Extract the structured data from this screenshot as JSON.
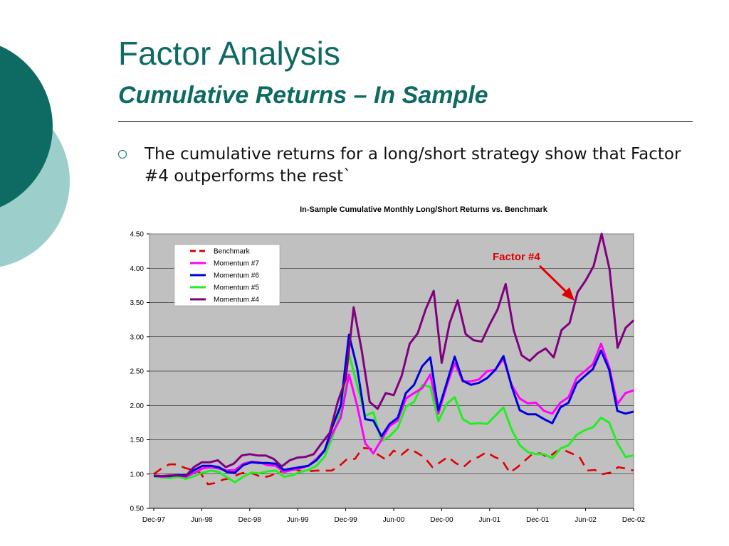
{
  "slide": {
    "title": "Factor Analysis",
    "subtitle": "Cumulative Returns – In Sample",
    "bullet": "The cumulative returns for a long/short strategy show that Factor #4 outperforms the rest`"
  },
  "colors": {
    "teal_dark": "#0d6b63",
    "teal_light": "#9ccfcc",
    "plot_bg": "#c0c0c0",
    "annotation": "#e00000"
  },
  "chart_data": {
    "type": "line",
    "title": "In-Sample Cumulative Monthly Long/Short Returns vs. Benchmark",
    "xlabel": "",
    "ylabel": "",
    "ylim": [
      0.5,
      4.5
    ],
    "yticks": [
      "0.50",
      "1.00",
      "1.50",
      "2.00",
      "2.50",
      "3.00",
      "3.50",
      "4.00",
      "4.50"
    ],
    "x_ticklabels": [
      "Dec-97",
      "Jun-98",
      "Dec-98",
      "Jun-99",
      "Dec-99",
      "Jun-00",
      "Dec-00",
      "Jun-01",
      "Dec-01",
      "Jun-02",
      "Dec-02"
    ],
    "grid": "horizontal",
    "legend_position": "top-left",
    "annotation": {
      "text": "Factor #4",
      "points_to": "Momentum #4"
    },
    "series": [
      {
        "name": "Benchmark",
        "color": "#e00000",
        "dash": true,
        "values": [
          1.0,
          1.08,
          1.14,
          1.14,
          1.09,
          1.06,
          1.02,
          0.85,
          0.87,
          0.92,
          0.94,
          1.0,
          1.03,
          1.0,
          0.95,
          0.97,
          1.03,
          1.04,
          1.08,
          1.04,
          1.04,
          1.05,
          1.05,
          1.05,
          1.12,
          1.22,
          1.22,
          1.38,
          1.37,
          1.28,
          1.21,
          1.34,
          1.28,
          1.37,
          1.31,
          1.24,
          1.1,
          1.17,
          1.25,
          1.16,
          1.1,
          1.2,
          1.25,
          1.32,
          1.25,
          1.2,
          1.02,
          1.1,
          1.2,
          1.3,
          1.3,
          1.24,
          1.33,
          1.35,
          1.3,
          1.25,
          1.05,
          1.06,
          1.0,
          1.02,
          1.1,
          1.08,
          1.05
        ]
      },
      {
        "name": "Momentum #7",
        "color": "#ff00ff",
        "values": [
          0.98,
          0.96,
          0.97,
          0.98,
          0.96,
          1.02,
          1.08,
          1.1,
          1.08,
          1.05,
          1.06,
          1.15,
          1.18,
          1.17,
          1.13,
          1.12,
          1.03,
          1.06,
          1.08,
          1.12,
          1.22,
          1.35,
          1.6,
          1.82,
          2.45,
          2.0,
          1.45,
          1.3,
          1.5,
          1.7,
          1.78,
          2.1,
          2.18,
          2.25,
          2.45,
          1.88,
          2.28,
          2.62,
          2.35,
          2.35,
          2.38,
          2.5,
          2.52,
          2.68,
          2.3,
          2.1,
          2.03,
          2.04,
          1.92,
          1.88,
          2.04,
          2.12,
          2.4,
          2.5,
          2.6,
          2.9,
          2.56,
          2.02,
          2.18,
          2.22
        ]
      },
      {
        "name": "Momentum #6",
        "color": "#0000dd",
        "values": [
          0.97,
          0.97,
          0.97,
          0.99,
          0.98,
          1.06,
          1.12,
          1.12,
          1.1,
          1.03,
          1.02,
          1.13,
          1.17,
          1.16,
          1.16,
          1.15,
          1.06,
          1.08,
          1.1,
          1.12,
          1.2,
          1.34,
          1.7,
          2.0,
          3.03,
          2.55,
          1.8,
          1.78,
          1.55,
          1.73,
          1.82,
          2.18,
          2.3,
          2.57,
          2.7,
          1.93,
          2.32,
          2.71,
          2.36,
          2.3,
          2.33,
          2.4,
          2.52,
          2.72,
          2.28,
          1.93,
          1.87,
          1.87,
          1.8,
          1.74,
          1.97,
          2.04,
          2.32,
          2.43,
          2.53,
          2.8,
          2.52,
          1.92,
          1.88,
          1.91
        ]
      },
      {
        "name": "Momentum #5",
        "color": "#22ee22",
        "values": [
          0.97,
          0.95,
          0.94,
          0.96,
          0.93,
          0.97,
          1.02,
          1.05,
          1.03,
          0.95,
          0.88,
          0.96,
          1.02,
          1.01,
          1.04,
          1.05,
          0.96,
          0.98,
          1.03,
          1.06,
          1.12,
          1.25,
          1.55,
          1.92,
          2.75,
          2.3,
          1.85,
          1.9,
          1.48,
          1.55,
          1.67,
          1.98,
          2.05,
          2.3,
          2.27,
          1.77,
          2.02,
          2.12,
          1.8,
          1.73,
          1.74,
          1.73,
          1.85,
          1.97,
          1.65,
          1.42,
          1.32,
          1.29,
          1.29,
          1.23,
          1.37,
          1.42,
          1.57,
          1.64,
          1.68,
          1.82,
          1.75,
          1.45,
          1.25,
          1.27
        ]
      },
      {
        "name": "Momentum #4",
        "color": "#800080",
        "values": [
          0.98,
          0.97,
          0.98,
          0.98,
          0.97,
          1.1,
          1.17,
          1.17,
          1.2,
          1.1,
          1.15,
          1.27,
          1.29,
          1.27,
          1.27,
          1.22,
          1.11,
          1.2,
          1.24,
          1.25,
          1.29,
          1.45,
          1.6,
          2.05,
          2.38,
          3.43,
          2.8,
          2.05,
          1.95,
          2.18,
          2.15,
          2.43,
          2.9,
          3.05,
          3.4,
          3.67,
          2.62,
          3.2,
          3.53,
          3.04,
          2.95,
          2.93,
          3.18,
          3.4,
          3.77,
          3.1,
          2.73,
          2.65,
          2.76,
          2.83,
          2.7,
          3.1,
          3.2,
          3.65,
          3.82,
          4.03,
          4.5,
          3.98,
          2.84,
          3.13,
          3.24
        ]
      }
    ]
  }
}
